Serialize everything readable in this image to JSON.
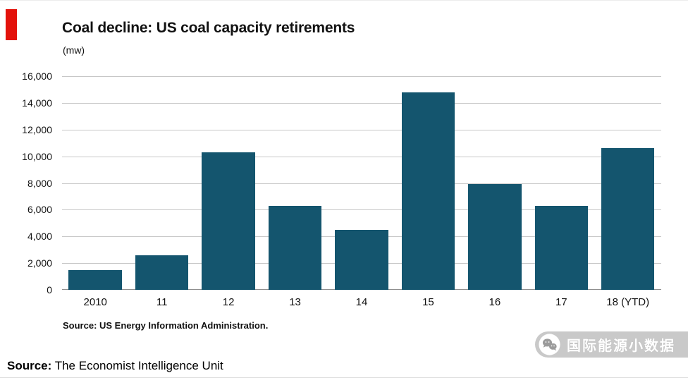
{
  "chart_data": {
    "type": "bar",
    "title": "Coal decline: US coal capacity retirements",
    "subtitle": "(mw)",
    "categories": [
      "2010",
      "11",
      "12",
      "13",
      "14",
      "15",
      "16",
      "17",
      "18 (YTD)"
    ],
    "values": [
      1500,
      2600,
      10300,
      6300,
      4500,
      14800,
      7900,
      6300,
      10600
    ],
    "ylim": [
      0,
      16000
    ],
    "ytick_labels": [
      "16,000",
      "14,000",
      "12,000",
      "10,000",
      "8,000",
      "6,000",
      "4,000",
      "2,000",
      "0"
    ],
    "grid": true,
    "legend_position": "none",
    "bar_color": "#14556e",
    "source_note": "Source: US Energy Information Administration."
  },
  "footer": {
    "source_label": "Source:",
    "source_value": " The Economist Intelligence Unit"
  },
  "watermark": {
    "text": "国际能源小数据",
    "icon": "wechat-chat-bubbles-icon"
  },
  "colors": {
    "accent_red": "#e3120b",
    "bar": "#14556e",
    "grid": "#c7c7c7",
    "baseline": "#8f8f8f",
    "watermark_bg": "#c9c9c9",
    "watermark_text": "#ffffff"
  }
}
